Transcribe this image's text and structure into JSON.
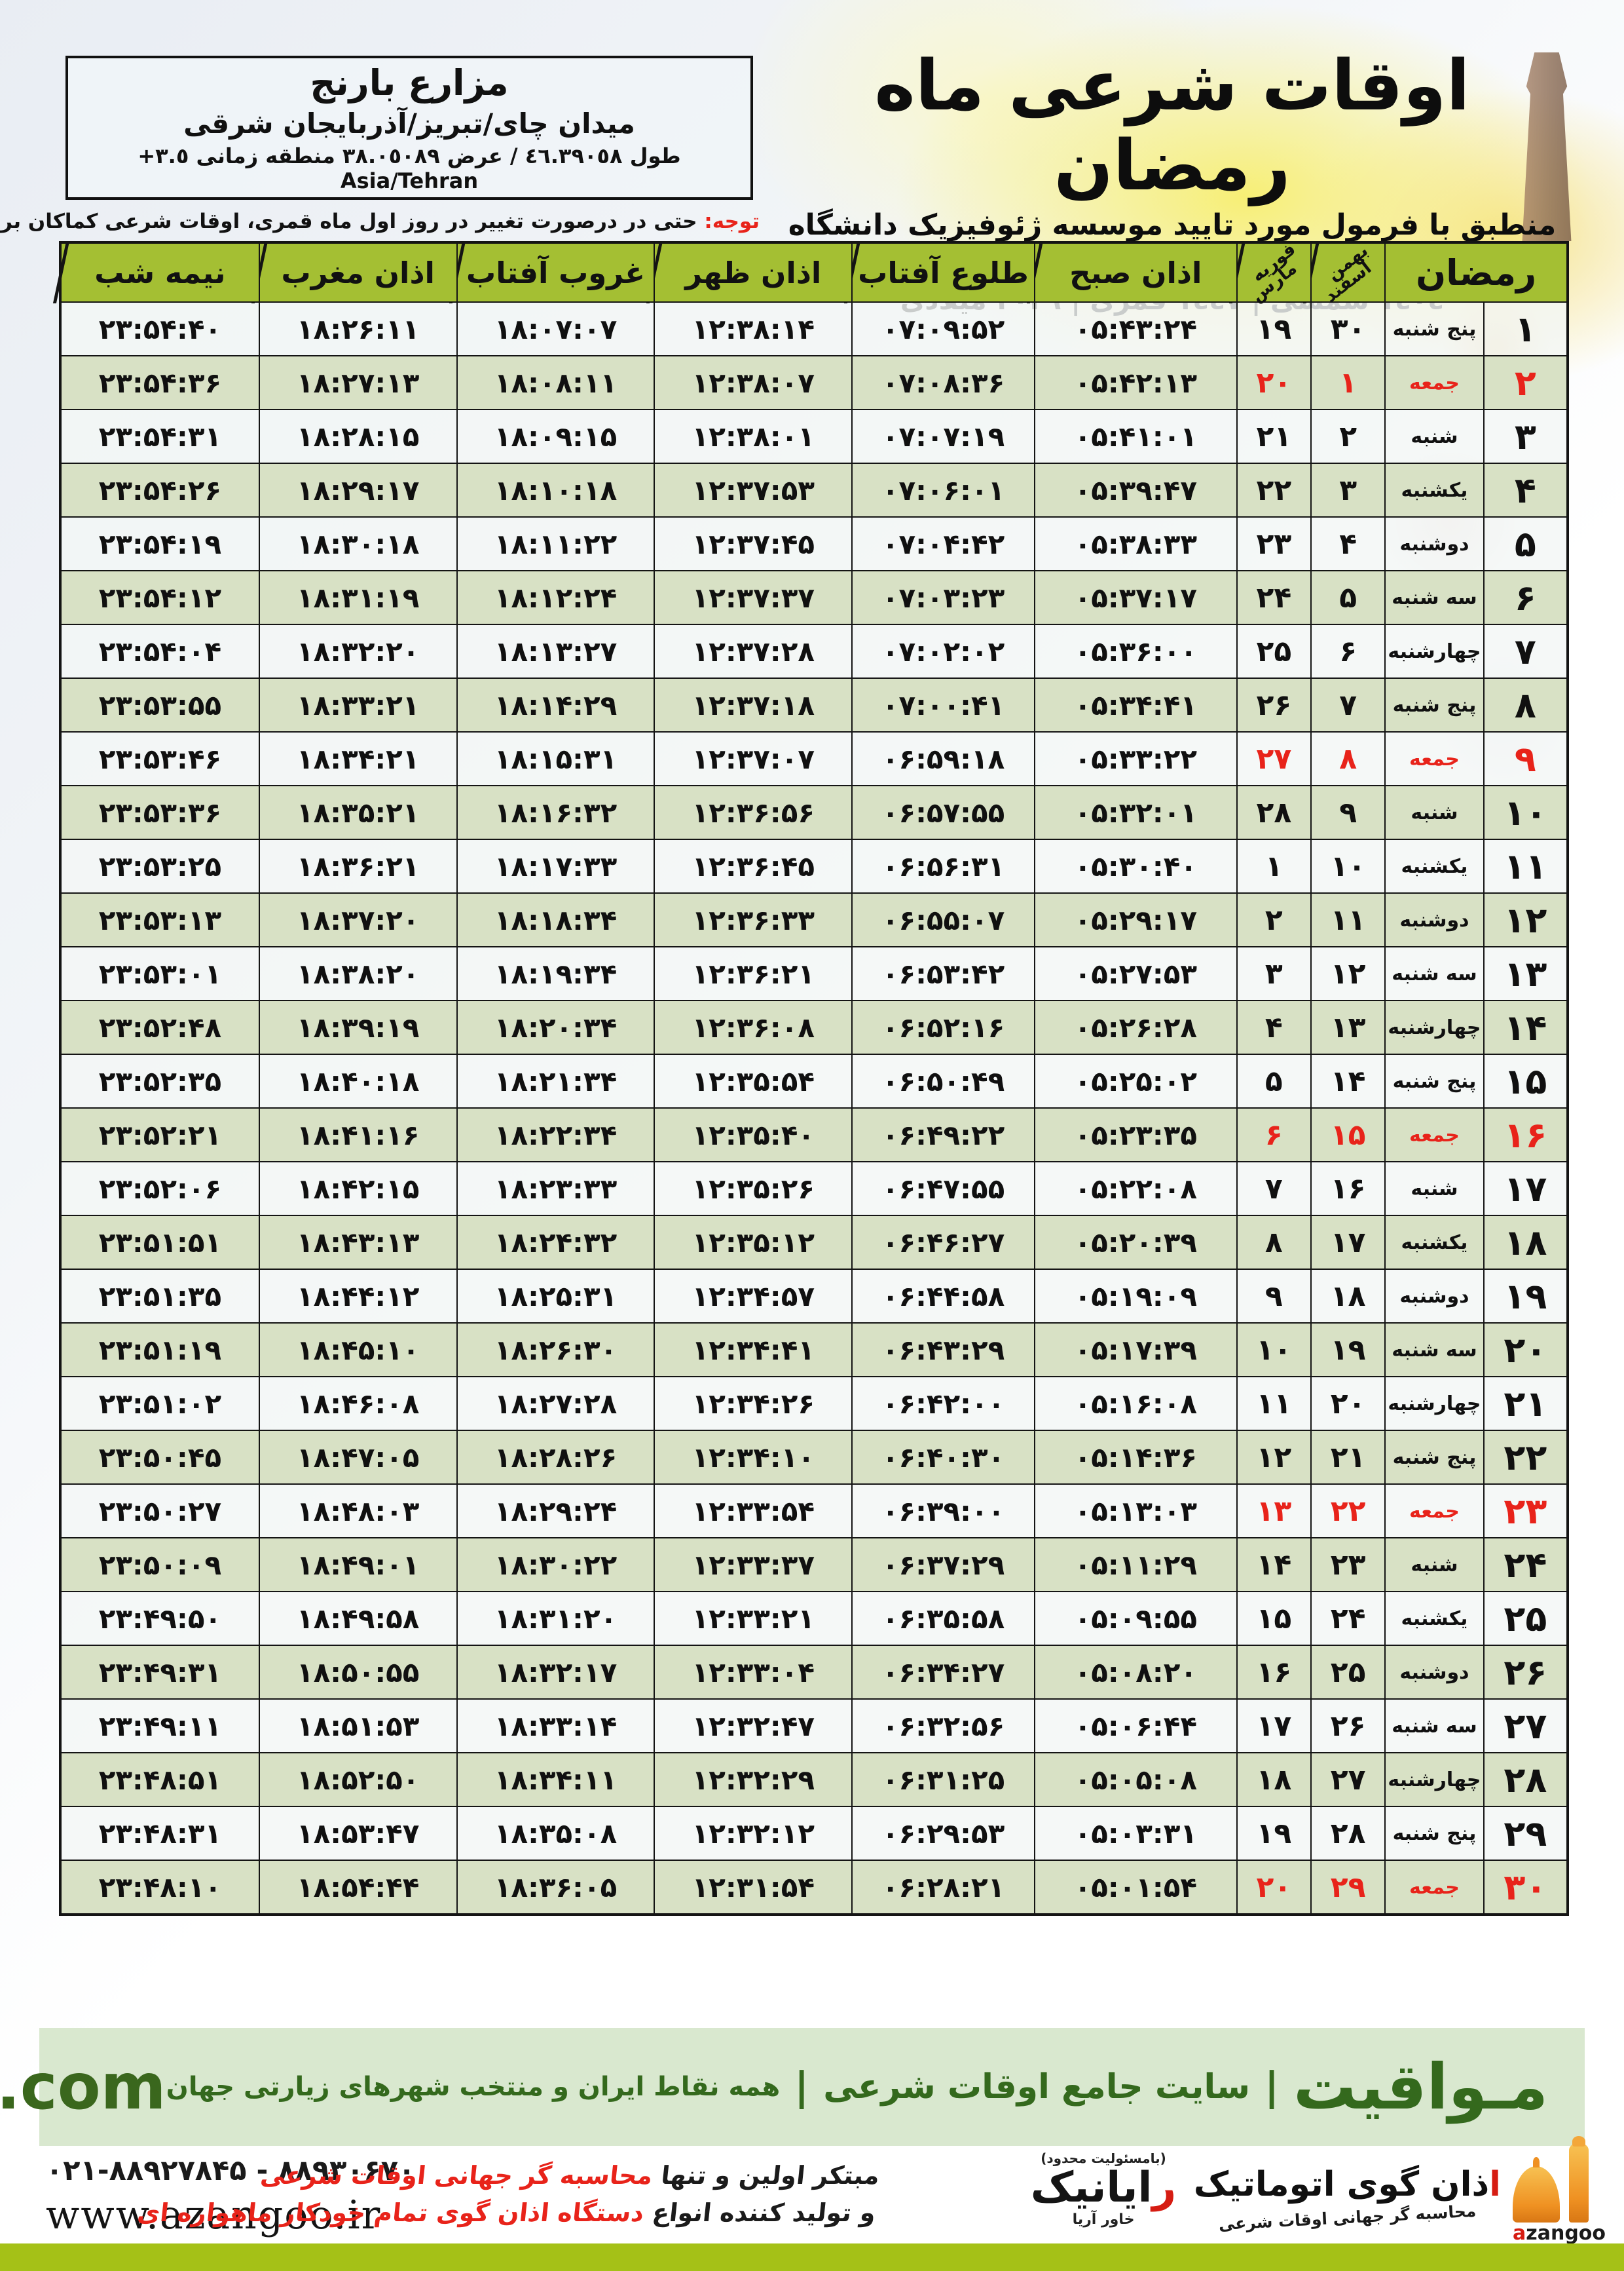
{
  "colors": {
    "accent_red": "#e8231a",
    "header_green": "#a4bf33",
    "row_green": "#d8e1c5",
    "bar_light_green": "#d9e8cf",
    "bar_dark_green": "#34691d",
    "bottom_bar": "#a5c117"
  },
  "location": {
    "name": "مزارع بارنج",
    "region": "میدان چای/تبریز/آذربایجان شرقی",
    "coords": "طول ٤٦.٣٩٠٥٨ / عرض ٣٨.٠٥٠٨٩ منطقه زمانی ٣.٥+ Asia/Tehran"
  },
  "header": {
    "title": "اوقات شرعی ماه رمضان",
    "subtitle": "منطبق با فرمول مورد تایید موسسه ژئوفیزیک دانشگاه تهران",
    "years": "۱٤۰٤ شمسی | ۱٤٤۷ قمری | ۲۰۲٦ میلادی"
  },
  "note": {
    "label": "توجه:",
    "text": " حتی در درصورت تغییر در روز اول ماه قمری، اوقات شرعی کماکان برای روزهای شمسی و میلادی معتبر است."
  },
  "table": {
    "columns": {
      "ramadan": "رمضان",
      "bahman": "بهمن",
      "esfand": "اسفند",
      "feb": "فوریه",
      "mar": "مارس",
      "sobh": "اذان صبح",
      "tolu": "طلوع آفتاب",
      "zohr": "اذان ظهر",
      "ghorub": "غروب آفتاب",
      "maghreb": "اذان مغرب",
      "nime": "نیمه شب"
    },
    "rows": [
      {
        "d": "۱",
        "w": "پنج شنبه",
        "e": "۳۰",
        "f": "۱۹",
        "sobh": "۰۵:۴۳:۲۴",
        "tolu": "۰۷:۰۹:۵۲",
        "zohr": "۱۲:۳۸:۱۴",
        "ghorub": "۱۸:۰۷:۰۷",
        "maghreb": "۱۸:۲۶:۱۱",
        "nime": "۲۳:۵۴:۴۰",
        "fri": false
      },
      {
        "d": "۲",
        "w": "جمعه",
        "e": "۱",
        "f": "۲۰",
        "sobh": "۰۵:۴۲:۱۳",
        "tolu": "۰۷:۰۸:۳۶",
        "zohr": "۱۲:۳۸:۰۷",
        "ghorub": "۱۸:۰۸:۱۱",
        "maghreb": "۱۸:۲۷:۱۳",
        "nime": "۲۳:۵۴:۳۶",
        "fri": true
      },
      {
        "d": "۳",
        "w": "شنبه",
        "e": "۲",
        "f": "۲۱",
        "sobh": "۰۵:۴۱:۰۱",
        "tolu": "۰۷:۰۷:۱۹",
        "zohr": "۱۲:۳۸:۰۱",
        "ghorub": "۱۸:۰۹:۱۵",
        "maghreb": "۱۸:۲۸:۱۵",
        "nime": "۲۳:۵۴:۳۱",
        "fri": false
      },
      {
        "d": "۴",
        "w": "یکشنبه",
        "e": "۳",
        "f": "۲۲",
        "sobh": "۰۵:۳۹:۴۷",
        "tolu": "۰۷:۰۶:۰۱",
        "zohr": "۱۲:۳۷:۵۳",
        "ghorub": "۱۸:۱۰:۱۸",
        "maghreb": "۱۸:۲۹:۱۷",
        "nime": "۲۳:۵۴:۲۶",
        "fri": false
      },
      {
        "d": "۵",
        "w": "دوشنبه",
        "e": "۴",
        "f": "۲۳",
        "sobh": "۰۵:۳۸:۳۳",
        "tolu": "۰۷:۰۴:۴۲",
        "zohr": "۱۲:۳۷:۴۵",
        "ghorub": "۱۸:۱۱:۲۲",
        "maghreb": "۱۸:۳۰:۱۸",
        "nime": "۲۳:۵۴:۱۹",
        "fri": false
      },
      {
        "d": "۶",
        "w": "سه شنبه",
        "e": "۵",
        "f": "۲۴",
        "sobh": "۰۵:۳۷:۱۷",
        "tolu": "۰۷:۰۳:۲۳",
        "zohr": "۱۲:۳۷:۳۷",
        "ghorub": "۱۸:۱۲:۲۴",
        "maghreb": "۱۸:۳۱:۱۹",
        "nime": "۲۳:۵۴:۱۲",
        "fri": false
      },
      {
        "d": "۷",
        "w": "چهارشنبه",
        "e": "۶",
        "f": "۲۵",
        "sobh": "۰۵:۳۶:۰۰",
        "tolu": "۰۷:۰۲:۰۲",
        "zohr": "۱۲:۳۷:۲۸",
        "ghorub": "۱۸:۱۳:۲۷",
        "maghreb": "۱۸:۳۲:۲۰",
        "nime": "۲۳:۵۴:۰۴",
        "fri": false
      },
      {
        "d": "۸",
        "w": "پنج شنبه",
        "e": "۷",
        "f": "۲۶",
        "sobh": "۰۵:۳۴:۴۱",
        "tolu": "۰۷:۰۰:۴۱",
        "zohr": "۱۲:۳۷:۱۸",
        "ghorub": "۱۸:۱۴:۲۹",
        "maghreb": "۱۸:۳۳:۲۱",
        "nime": "۲۳:۵۳:۵۵",
        "fri": false
      },
      {
        "d": "۹",
        "w": "جمعه",
        "e": "۸",
        "f": "۲۷",
        "sobh": "۰۵:۳۳:۲۲",
        "tolu": "۰۶:۵۹:۱۸",
        "zohr": "۱۲:۳۷:۰۷",
        "ghorub": "۱۸:۱۵:۳۱",
        "maghreb": "۱۸:۳۴:۲۱",
        "nime": "۲۳:۵۳:۴۶",
        "fri": true
      },
      {
        "d": "۱۰",
        "w": "شنبه",
        "e": "۹",
        "f": "۲۸",
        "sobh": "۰۵:۳۲:۰۱",
        "tolu": "۰۶:۵۷:۵۵",
        "zohr": "۱۲:۳۶:۵۶",
        "ghorub": "۱۸:۱۶:۳۲",
        "maghreb": "۱۸:۳۵:۲۱",
        "nime": "۲۳:۵۳:۳۶",
        "fri": false
      },
      {
        "d": "۱۱",
        "w": "یکشنبه",
        "e": "۱۰",
        "f": "۱",
        "sobh": "۰۵:۳۰:۴۰",
        "tolu": "۰۶:۵۶:۳۱",
        "zohr": "۱۲:۳۶:۴۵",
        "ghorub": "۱۸:۱۷:۳۳",
        "maghreb": "۱۸:۳۶:۲۱",
        "nime": "۲۳:۵۳:۲۵",
        "fri": false
      },
      {
        "d": "۱۲",
        "w": "دوشنبه",
        "e": "۱۱",
        "f": "۲",
        "sobh": "۰۵:۲۹:۱۷",
        "tolu": "۰۶:۵۵:۰۷",
        "zohr": "۱۲:۳۶:۳۳",
        "ghorub": "۱۸:۱۸:۳۴",
        "maghreb": "۱۸:۳۷:۲۰",
        "nime": "۲۳:۵۳:۱۳",
        "fri": false
      },
      {
        "d": "۱۳",
        "w": "سه شنبه",
        "e": "۱۲",
        "f": "۳",
        "sobh": "۰۵:۲۷:۵۳",
        "tolu": "۰۶:۵۳:۴۲",
        "zohr": "۱۲:۳۶:۲۱",
        "ghorub": "۱۸:۱۹:۳۴",
        "maghreb": "۱۸:۳۸:۲۰",
        "nime": "۲۳:۵۳:۰۱",
        "fri": false
      },
      {
        "d": "۱۴",
        "w": "چهارشنبه",
        "e": "۱۳",
        "f": "۴",
        "sobh": "۰۵:۲۶:۲۸",
        "tolu": "۰۶:۵۲:۱۶",
        "zohr": "۱۲:۳۶:۰۸",
        "ghorub": "۱۸:۲۰:۳۴",
        "maghreb": "۱۸:۳۹:۱۹",
        "nime": "۲۳:۵۲:۴۸",
        "fri": false
      },
      {
        "d": "۱۵",
        "w": "پنج شنبه",
        "e": "۱۴",
        "f": "۵",
        "sobh": "۰۵:۲۵:۰۲",
        "tolu": "۰۶:۵۰:۴۹",
        "zohr": "۱۲:۳۵:۵۴",
        "ghorub": "۱۸:۲۱:۳۴",
        "maghreb": "۱۸:۴۰:۱۸",
        "nime": "۲۳:۵۲:۳۵",
        "fri": false
      },
      {
        "d": "۱۶",
        "w": "جمعه",
        "e": "۱۵",
        "f": "۶",
        "sobh": "۰۵:۲۳:۳۵",
        "tolu": "۰۶:۴۹:۲۲",
        "zohr": "۱۲:۳۵:۴۰",
        "ghorub": "۱۸:۲۲:۳۴",
        "maghreb": "۱۸:۴۱:۱۶",
        "nime": "۲۳:۵۲:۲۱",
        "fri": true
      },
      {
        "d": "۱۷",
        "w": "شنبه",
        "e": "۱۶",
        "f": "۷",
        "sobh": "۰۵:۲۲:۰۸",
        "tolu": "۰۶:۴۷:۵۵",
        "zohr": "۱۲:۳۵:۲۶",
        "ghorub": "۱۸:۲۳:۳۳",
        "maghreb": "۱۸:۴۲:۱۵",
        "nime": "۲۳:۵۲:۰۶",
        "fri": false
      },
      {
        "d": "۱۸",
        "w": "یکشنبه",
        "e": "۱۷",
        "f": "۸",
        "sobh": "۰۵:۲۰:۳۹",
        "tolu": "۰۶:۴۶:۲۷",
        "zohr": "۱۲:۳۵:۱۲",
        "ghorub": "۱۸:۲۴:۳۲",
        "maghreb": "۱۸:۴۳:۱۳",
        "nime": "۲۳:۵۱:۵۱",
        "fri": false
      },
      {
        "d": "۱۹",
        "w": "دوشنبه",
        "e": "۱۸",
        "f": "۹",
        "sobh": "۰۵:۱۹:۰۹",
        "tolu": "۰۶:۴۴:۵۸",
        "zohr": "۱۲:۳۴:۵۷",
        "ghorub": "۱۸:۲۵:۳۱",
        "maghreb": "۱۸:۴۴:۱۲",
        "nime": "۲۳:۵۱:۳۵",
        "fri": false
      },
      {
        "d": "۲۰",
        "w": "سه شنبه",
        "e": "۱۹",
        "f": "۱۰",
        "sobh": "۰۵:۱۷:۳۹",
        "tolu": "۰۶:۴۳:۲۹",
        "zohr": "۱۲:۳۴:۴۱",
        "ghorub": "۱۸:۲۶:۳۰",
        "maghreb": "۱۸:۴۵:۱۰",
        "nime": "۲۳:۵۱:۱۹",
        "fri": false
      },
      {
        "d": "۲۱",
        "w": "چهارشنبه",
        "e": "۲۰",
        "f": "۱۱",
        "sobh": "۰۵:۱۶:۰۸",
        "tolu": "۰۶:۴۲:۰۰",
        "zohr": "۱۲:۳۴:۲۶",
        "ghorub": "۱۸:۲۷:۲۸",
        "maghreb": "۱۸:۴۶:۰۸",
        "nime": "۲۳:۵۱:۰۲",
        "fri": false
      },
      {
        "d": "۲۲",
        "w": "پنج شنبه",
        "e": "۲۱",
        "f": "۱۲",
        "sobh": "۰۵:۱۴:۳۶",
        "tolu": "۰۶:۴۰:۳۰",
        "zohr": "۱۲:۳۴:۱۰",
        "ghorub": "۱۸:۲۸:۲۶",
        "maghreb": "۱۸:۴۷:۰۵",
        "nime": "۲۳:۵۰:۴۵",
        "fri": false
      },
      {
        "d": "۲۳",
        "w": "جمعه",
        "e": "۲۲",
        "f": "۱۳",
        "sobh": "۰۵:۱۳:۰۳",
        "tolu": "۰۶:۳۹:۰۰",
        "zohr": "۱۲:۳۳:۵۴",
        "ghorub": "۱۸:۲۹:۲۴",
        "maghreb": "۱۸:۴۸:۰۳",
        "nime": "۲۳:۵۰:۲۷",
        "fri": true
      },
      {
        "d": "۲۴",
        "w": "شنبه",
        "e": "۲۳",
        "f": "۱۴",
        "sobh": "۰۵:۱۱:۲۹",
        "tolu": "۰۶:۳۷:۲۹",
        "zohr": "۱۲:۳۳:۳۷",
        "ghorub": "۱۸:۳۰:۲۲",
        "maghreb": "۱۸:۴۹:۰۱",
        "nime": "۲۳:۵۰:۰۹",
        "fri": false
      },
      {
        "d": "۲۵",
        "w": "یکشنبه",
        "e": "۲۴",
        "f": "۱۵",
        "sobh": "۰۵:۰۹:۵۵",
        "tolu": "۰۶:۳۵:۵۸",
        "zohr": "۱۲:۳۳:۲۱",
        "ghorub": "۱۸:۳۱:۲۰",
        "maghreb": "۱۸:۴۹:۵۸",
        "nime": "۲۳:۴۹:۵۰",
        "fri": false
      },
      {
        "d": "۲۶",
        "w": "دوشنبه",
        "e": "۲۵",
        "f": "۱۶",
        "sobh": "۰۵:۰۸:۲۰",
        "tolu": "۰۶:۳۴:۲۷",
        "zohr": "۱۲:۳۳:۰۴",
        "ghorub": "۱۸:۳۲:۱۷",
        "maghreb": "۱۸:۵۰:۵۵",
        "nime": "۲۳:۴۹:۳۱",
        "fri": false
      },
      {
        "d": "۲۷",
        "w": "سه شنبه",
        "e": "۲۶",
        "f": "۱۷",
        "sobh": "۰۵:۰۶:۴۴",
        "tolu": "۰۶:۳۲:۵۶",
        "zohr": "۱۲:۳۲:۴۷",
        "ghorub": "۱۸:۳۳:۱۴",
        "maghreb": "۱۸:۵۱:۵۳",
        "nime": "۲۳:۴۹:۱۱",
        "fri": false
      },
      {
        "d": "۲۸",
        "w": "چهارشنبه",
        "e": "۲۷",
        "f": "۱۸",
        "sobh": "۰۵:۰۵:۰۸",
        "tolu": "۰۶:۳۱:۲۵",
        "zohr": "۱۲:۳۲:۲۹",
        "ghorub": "۱۸:۳۴:۱۱",
        "maghreb": "۱۸:۵۲:۵۰",
        "nime": "۲۳:۴۸:۵۱",
        "fri": false
      },
      {
        "d": "۲۹",
        "w": "پنج شنبه",
        "e": "۲۸",
        "f": "۱۹",
        "sobh": "۰۵:۰۳:۳۱",
        "tolu": "۰۶:۲۹:۵۳",
        "zohr": "۱۲:۳۲:۱۲",
        "ghorub": "۱۸:۳۵:۰۸",
        "maghreb": "۱۸:۵۳:۴۷",
        "nime": "۲۳:۴۸:۳۱",
        "fri": false
      },
      {
        "d": "۳۰",
        "w": "جمعه",
        "e": "۲۹",
        "f": "۲۰",
        "sobh": "۰۵:۰۱:۵۴",
        "tolu": "۰۶:۲۸:۲۱",
        "zohr": "۱۲:۳۱:۵۴",
        "ghorub": "۱۸:۳۶:۰۵",
        "maghreb": "۱۸:۵۴:۴۴",
        "nime": "۲۳:۴۸:۱۰",
        "fri": true
      }
    ]
  },
  "mavaqeet": {
    "brand": "مـواقیت",
    "pipe": "|",
    "tagline1": "سایت جامع اوقات شرعی",
    "tagline2": "همه نقاط ایران و منتخب شهرهای زیارتی جهان",
    "site": "mavaqeet.com"
  },
  "footer": {
    "phones": "۰۲۱-۸۸۹۲۷۸۴۵ - ۸۸۹۳۰۶۷۰",
    "website": "www.azangoo.ir",
    "claim1_black": "مبتکر اولین و تنها ",
    "claim1_red": "محاسبه گر جهانی اوقات شرعی",
    "claim2_black": "و تولید کننده انواع ",
    "claim2_red": "دستگاه اذان گوی تمام خودکار ماهواره ای",
    "rayanik_top": "(بامسئولیت محدود)",
    "rayanik_r": "ر",
    "rayanik_main": "ایانیک",
    "rayanik_side": "خاور آریا",
    "azangoo_a": "ا",
    "azangoo_fa": "ذان گوی اتوماتیک",
    "azangoo_slogan": "محاسبه گر جهانی اوقات شرعی",
    "azangoo_latin_a": "a",
    "azangoo_latin_rest": "zangoo"
  }
}
